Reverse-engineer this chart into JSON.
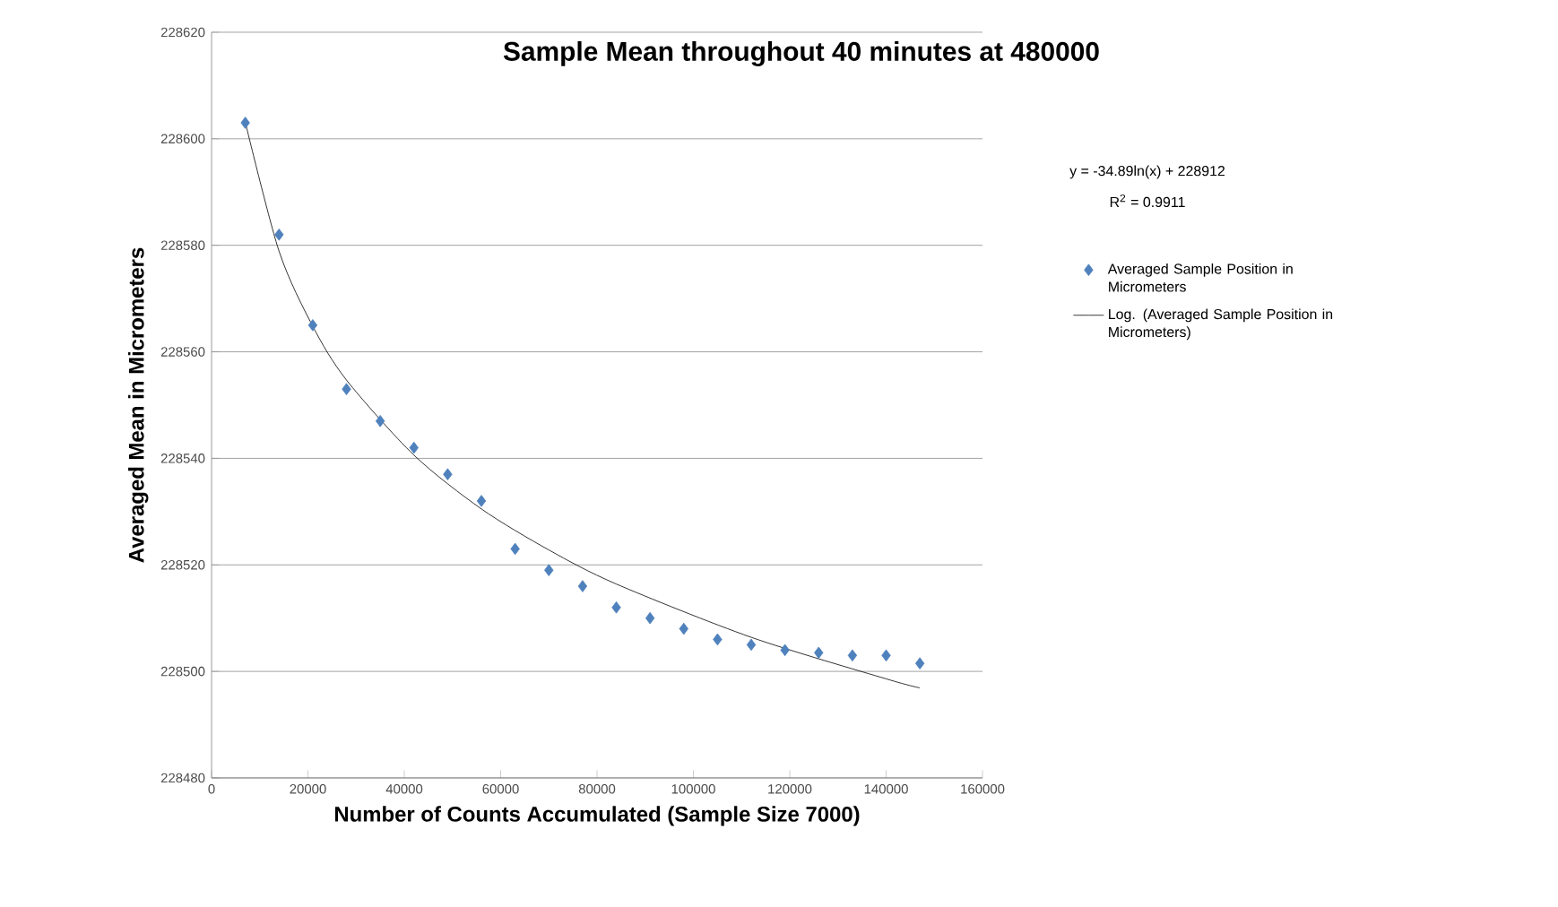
{
  "chart_data": {
    "type": "scatter",
    "title": "Sample Mean throughout 40 minutes at 480000",
    "xlabel": "Number of Counts Accumulated (Sample Size 7000)",
    "ylabel": "Averaged Mean in Micrometers",
    "annotations": [
      "y = -34.89ln(x) + 228912",
      "R$^{2}$ = 0.9911"
    ],
    "x": [
      7000,
      14000,
      21000,
      28000,
      35000,
      42000,
      49000,
      56000,
      63000,
      70000,
      77000,
      84000,
      91000,
      98000,
      105000,
      112000,
      119000,
      126000,
      133000,
      140000,
      147000
    ],
    "series": [
      {
        "name": "Averaged Sample Position in Micrometers",
        "color": "#4f81bd",
        "marker": "diamond",
        "values": [
          228603,
          228582,
          228565,
          228553,
          228547,
          228542,
          228537,
          228532,
          228523,
          228519,
          228516,
          228512,
          228510,
          228508,
          228506,
          228505,
          228504,
          228503.5,
          228503,
          228503,
          228501.5
        ]
      },
      {
        "name": "Log. (Averaged Sample Position in Micrometers)",
        "type": "line",
        "color": "#000000",
        "marker": "none",
        "line_style": "solid",
        "x": [
          7000,
          14000,
          21000,
          28000,
          42000,
          56000,
          70000,
          84000,
          112000,
          140000,
          147000
        ],
        "values": [
          228603.1,
          228578.9,
          228564.8,
          228554.7,
          228540.6,
          228530.5,
          228522.8,
          228516.4,
          228506.4,
          228498.6,
          228496.9
        ]
      }
    ],
    "xlim": [
      0,
      160000
    ],
    "xticks": [
      0,
      20000,
      40000,
      60000,
      80000,
      100000,
      120000,
      140000,
      160000
    ],
    "ylim": [
      228480,
      228620
    ],
    "yticks": [
      228480,
      228500,
      228520,
      228540,
      228560,
      228580,
      228600,
      228620
    ],
    "grid": "y",
    "legend": "right"
  }
}
